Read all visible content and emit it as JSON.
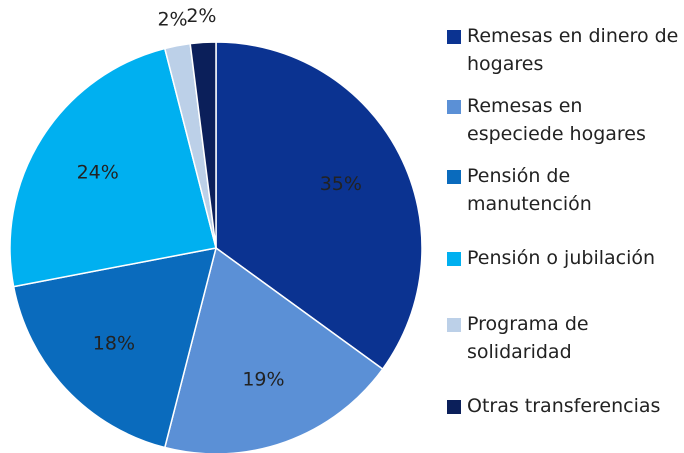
{
  "chart_data": {
    "type": "pie",
    "categories": [
      "Remesas en dinero de hogares",
      "Remesas en especiede hogares",
      "Pensión de manutención",
      "Pensión o jubilación",
      "Programa de solidaridad",
      "Otras transferencias"
    ],
    "values": [
      35,
      19,
      18,
      24,
      2,
      2
    ],
    "value_labels": [
      "35%",
      "19%",
      "18%",
      "24%",
      "2%",
      "2%"
    ],
    "colors": [
      "#0b3391",
      "#5b90d6",
      "#0a6bbd",
      "#00b0f0",
      "#bcd0e8",
      "#0b1f5a"
    ],
    "legend": "right"
  }
}
